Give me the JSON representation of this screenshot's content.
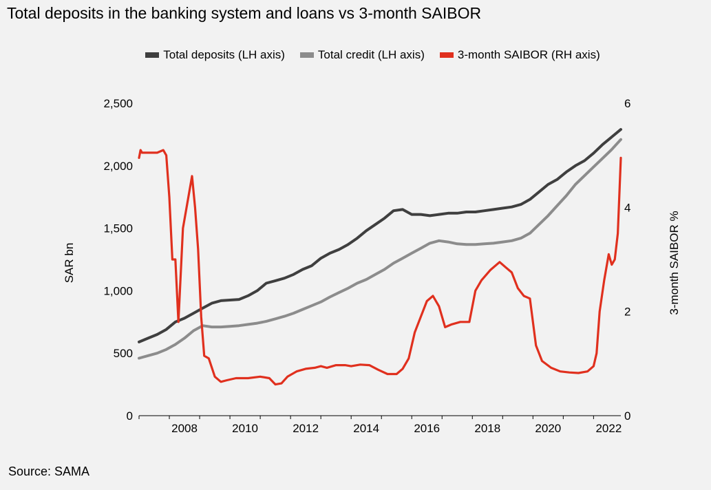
{
  "title": "Total deposits in the banking system and loans vs 3-month SAIBOR",
  "source": "Source: SAMA",
  "legend": [
    {
      "label": "Total deposits (LH axis)",
      "color": "#3f3f3f"
    },
    {
      "label": "Total credit (LH axis)",
      "color": "#8c8c8c"
    },
    {
      "label": "3-month SAIBOR (RH axis)",
      "color": "#e0301e"
    }
  ],
  "chart_data": {
    "type": "line",
    "title": "Total deposits in the banking system and loans vs 3-month SAIBOR",
    "ylabel": "SAR bn",
    "y2label": "3-month SAIBOR %",
    "ylim": [
      0,
      2500
    ],
    "y2lim": [
      0,
      6
    ],
    "xlim": [
      2007.0,
      2022.9
    ],
    "yticks": [
      "0",
      "500",
      "1,000",
      "1,500",
      "2,000",
      "2,500"
    ],
    "y2ticks": [
      "0",
      "2",
      "4",
      "6"
    ],
    "xticks": [
      "2008",
      "2010",
      "2012",
      "2014",
      "2016",
      "2018",
      "2020",
      "2022"
    ],
    "grid": false,
    "legend_position": "top",
    "series": [
      {
        "name": "Total deposits (LH axis)",
        "axis": "left",
        "color": "#3f3f3f",
        "x": [
          2007.0,
          2007.3,
          2007.6,
          2007.9,
          2008.2,
          2008.5,
          2008.8,
          2009.1,
          2009.4,
          2009.7,
          2010.0,
          2010.3,
          2010.6,
          2010.9,
          2011.2,
          2011.5,
          2011.8,
          2012.1,
          2012.4,
          2012.7,
          2013.0,
          2013.3,
          2013.6,
          2013.9,
          2014.2,
          2014.5,
          2014.8,
          2015.1,
          2015.4,
          2015.7,
          2016.0,
          2016.3,
          2016.6,
          2016.9,
          2017.2,
          2017.5,
          2017.8,
          2018.1,
          2018.4,
          2018.7,
          2019.0,
          2019.3,
          2019.6,
          2019.9,
          2020.2,
          2020.5,
          2020.8,
          2021.1,
          2021.4,
          2021.7,
          2022.0,
          2022.3,
          2022.6,
          2022.9
        ],
        "y": [
          590,
          620,
          650,
          690,
          750,
          780,
          820,
          860,
          900,
          920,
          925,
          930,
          960,
          1000,
          1060,
          1080,
          1100,
          1130,
          1170,
          1200,
          1260,
          1300,
          1330,
          1370,
          1420,
          1480,
          1530,
          1580,
          1640,
          1650,
          1610,
          1610,
          1600,
          1610,
          1620,
          1620,
          1630,
          1630,
          1640,
          1650,
          1660,
          1670,
          1690,
          1730,
          1790,
          1850,
          1890,
          1950,
          2000,
          2040,
          2100,
          2170,
          2230,
          2290
        ]
      },
      {
        "name": "Total credit (LH axis)",
        "axis": "left",
        "color": "#8c8c8c",
        "x": [
          2007.0,
          2007.3,
          2007.6,
          2007.9,
          2008.2,
          2008.5,
          2008.8,
          2009.1,
          2009.4,
          2009.7,
          2010.0,
          2010.3,
          2010.6,
          2010.9,
          2011.2,
          2011.5,
          2011.8,
          2012.1,
          2012.4,
          2012.7,
          2013.0,
          2013.3,
          2013.6,
          2013.9,
          2014.2,
          2014.5,
          2014.8,
          2015.1,
          2015.4,
          2015.7,
          2016.0,
          2016.3,
          2016.6,
          2016.9,
          2017.2,
          2017.5,
          2017.8,
          2018.1,
          2018.4,
          2018.7,
          2019.0,
          2019.3,
          2019.6,
          2019.9,
          2020.2,
          2020.5,
          2020.8,
          2021.1,
          2021.4,
          2021.7,
          2022.0,
          2022.3,
          2022.6,
          2022.9
        ],
        "y": [
          460,
          480,
          500,
          530,
          570,
          620,
          680,
          720,
          710,
          710,
          715,
          720,
          730,
          740,
          755,
          775,
          795,
          820,
          850,
          880,
          910,
          950,
          985,
          1020,
          1060,
          1090,
          1130,
          1170,
          1220,
          1260,
          1300,
          1340,
          1380,
          1400,
          1390,
          1375,
          1370,
          1370,
          1375,
          1380,
          1390,
          1400,
          1420,
          1460,
          1530,
          1600,
          1680,
          1760,
          1850,
          1920,
          1990,
          2060,
          2130,
          2210
        ]
      },
      {
        "name": "3-month SAIBOR (RH axis)",
        "axis": "right",
        "color": "#e0301e",
        "x": [
          2007.0,
          2007.05,
          2007.1,
          2007.3,
          2007.6,
          2007.8,
          2007.9,
          2008.0,
          2008.1,
          2008.2,
          2008.3,
          2008.45,
          2008.6,
          2008.75,
          2008.85,
          2008.95,
          2009.05,
          2009.15,
          2009.3,
          2009.5,
          2009.7,
          2009.9,
          2010.2,
          2010.6,
          2011.0,
          2011.3,
          2011.5,
          2011.7,
          2011.9,
          2012.2,
          2012.5,
          2012.8,
          2013.0,
          2013.2,
          2013.5,
          2013.8,
          2014.0,
          2014.3,
          2014.6,
          2014.9,
          2015.2,
          2015.5,
          2015.7,
          2015.9,
          2016.1,
          2016.3,
          2016.5,
          2016.7,
          2016.9,
          2017.1,
          2017.3,
          2017.6,
          2017.9,
          2018.1,
          2018.3,
          2018.6,
          2018.9,
          2019.1,
          2019.3,
          2019.5,
          2019.7,
          2019.9,
          2020.1,
          2020.3,
          2020.6,
          2020.9,
          2021.2,
          2021.5,
          2021.8,
          2022.0,
          2022.1,
          2022.2,
          2022.35,
          2022.5,
          2022.6,
          2022.7,
          2022.8,
          2022.9
        ],
        "y": [
          4.95,
          5.1,
          5.05,
          5.05,
          5.05,
          5.1,
          5.0,
          4.2,
          3.0,
          3.0,
          1.8,
          3.6,
          4.1,
          4.6,
          4.0,
          3.2,
          1.9,
          1.15,
          1.1,
          0.75,
          0.65,
          0.68,
          0.72,
          0.72,
          0.75,
          0.72,
          0.6,
          0.62,
          0.75,
          0.85,
          0.9,
          0.92,
          0.95,
          0.92,
          0.97,
          0.97,
          0.95,
          0.98,
          0.97,
          0.88,
          0.8,
          0.8,
          0.9,
          1.1,
          1.6,
          1.9,
          2.2,
          2.3,
          2.1,
          1.7,
          1.75,
          1.8,
          1.8,
          2.4,
          2.6,
          2.8,
          2.95,
          2.85,
          2.75,
          2.45,
          2.3,
          2.25,
          1.35,
          1.05,
          0.92,
          0.85,
          0.83,
          0.82,
          0.85,
          0.95,
          1.2,
          2.0,
          2.6,
          3.1,
          2.9,
          3.0,
          3.5,
          4.95
        ]
      }
    ]
  }
}
